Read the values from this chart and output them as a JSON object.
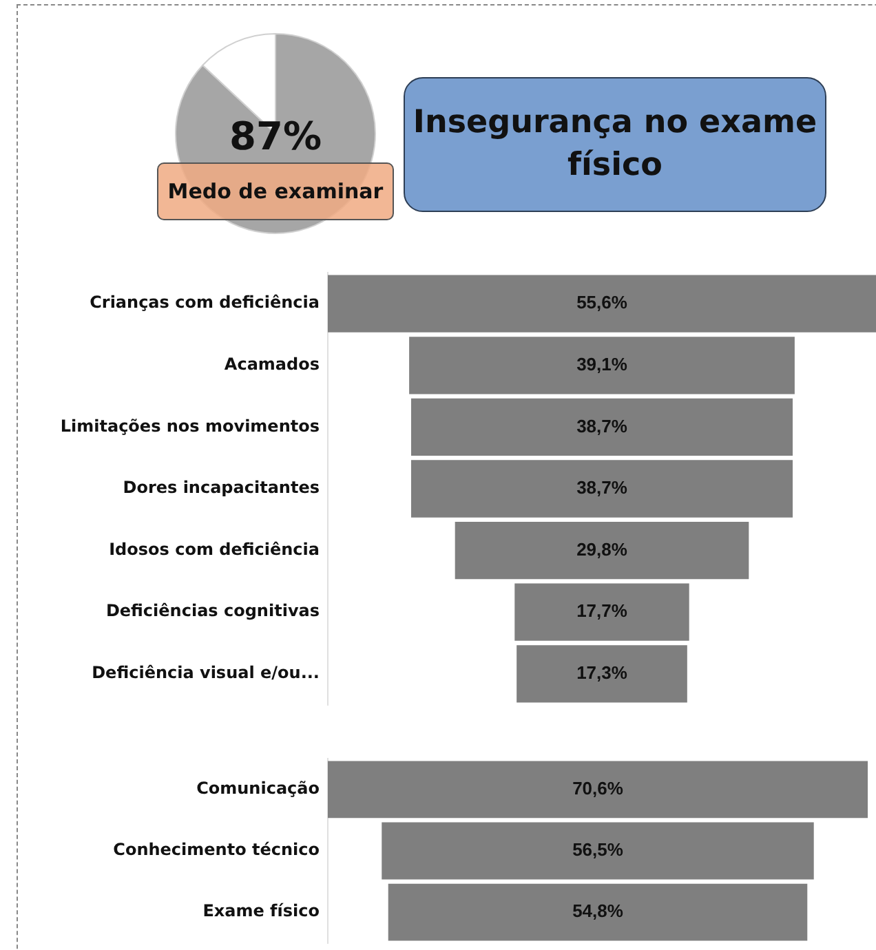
{
  "chart_data": [
    {
      "type": "pie",
      "categories": [
        "Medo de examinar",
        null
      ],
      "values": [
        87,
        13
      ],
      "colors": [
        "#a6a6a6",
        "#ffffff"
      ],
      "value_labels": [
        "87%",
        null
      ]
    },
    {
      "type": "other",
      "title": "Insegurança no exame físico",
      "categories": [
        "Crianças com deficiência",
        "Acamados",
        "Limitações nos movimentos",
        "Dores incapacitantes",
        "Idosos com deficiência",
        "Deficiências cognitivas",
        "Deficiência visual e/ou..."
      ],
      "values": [
        55.6,
        39.1,
        38.7,
        38.7,
        29.8,
        17.7,
        17.3
      ],
      "color": "#7f7f7f",
      "value_labels": [
        "55,6%",
        "39,1%",
        "38,7%",
        "38,7%",
        "29,8%",
        "17,7%",
        "17,3%"
      ]
    },
    {
      "type": "other",
      "categories": [
        "Comunicação",
        "Conhecimento técnico",
        "Exame físico"
      ],
      "values": [
        70.6,
        56.5,
        54.8
      ],
      "color": "#7f7f7f",
      "value_labels": [
        "70,6%",
        "56,5%",
        "54,8%"
      ]
    }
  ]
}
